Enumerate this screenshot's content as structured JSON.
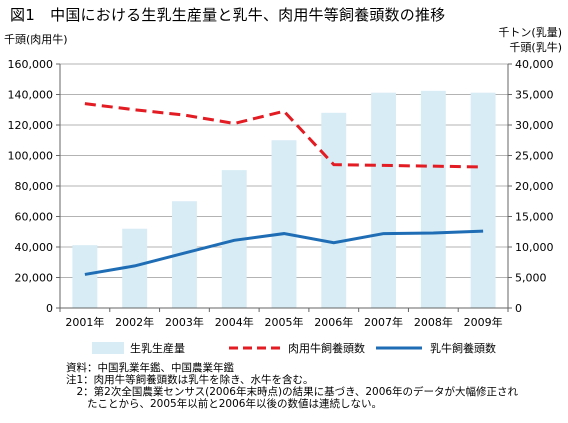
{
  "title": "図1　中国における生乳生産量と乳牛、肉用牛等飼養頭数の推移",
  "colors": {
    "bar": "#d7ecf5",
    "beef": "#e31b23",
    "dairy": "#1f6db5",
    "grid": "#9a9a9a"
  },
  "chart_data": {
    "type": "bar",
    "categories": [
      "2001年",
      "2002年",
      "2003年",
      "2004年",
      "2005年",
      "2006年",
      "2007年",
      "2008年",
      "2009年"
    ],
    "ylabel": "千頭(肉用牛)",
    "y2label": [
      "千トン(乳量)",
      "千頭(乳牛)"
    ],
    "ylim": [
      0,
      160000
    ],
    "y2lim": [
      0,
      40000
    ],
    "yticks": [
      "0",
      "20,000",
      "40,000",
      "60,000",
      "80,000",
      "100,000",
      "120,000",
      "140,000",
      "160,000"
    ],
    "y2ticks": [
      "0",
      "5,000",
      "10,000",
      "15,000",
      "20,000",
      "25,000",
      "30,000",
      "35,000",
      "40,000"
    ],
    "grid": true,
    "legend_position": "bottom",
    "series": [
      {
        "name": "生乳生産量",
        "kind": "bar",
        "axis": "right",
        "values": [
          10300,
          13000,
          17500,
          22600,
          27500,
          32000,
          35300,
          35600,
          35300
        ]
      },
      {
        "name": "肉用牛飼養頭数",
        "kind": "dashed-line",
        "axis": "left",
        "values": [
          134000,
          130000,
          126500,
          121000,
          129000,
          94000,
          93500,
          93000,
          92500
        ]
      },
      {
        "name": "乳牛飼養頭数",
        "kind": "line",
        "axis": "right",
        "values": [
          5500,
          6900,
          9000,
          11100,
          12200,
          10700,
          12200,
          12300,
          12600
        ]
      }
    ]
  },
  "notes": [
    "資料：中国乳業年鑑、中国農業年鑑",
    "注1：肉用牛等飼養頭数は乳牛を除き、水牛を含む。",
    "　2：第2次全国農業センサス(2006年末時点)の結果に基づき、2006年のデータが大幅修正され",
    "　　たことから、2005年以前と2006年以後の数値は連続しない。"
  ]
}
